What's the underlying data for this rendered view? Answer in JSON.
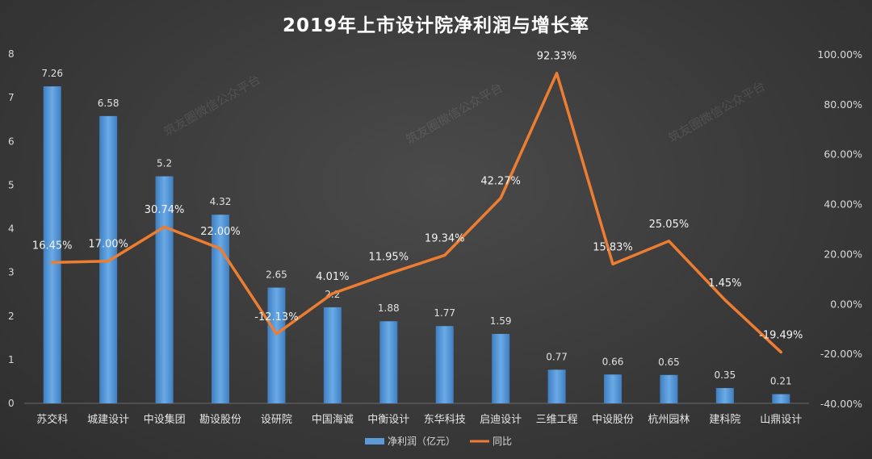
{
  "chart_data": {
    "type": "bar",
    "title": "2019年上市设计院净利润与增长率",
    "categories": [
      "苏交科",
      "城建设计",
      "中设集团",
      "勘设股份",
      "设研院",
      "中国海诚",
      "中衡设计",
      "东华科技",
      "启迪设计",
      "三维工程",
      "中设股份",
      "杭州园林",
      "建科院",
      "山鼎设计"
    ],
    "series": [
      {
        "name": "净利润（亿元）",
        "type": "bar",
        "axis": "left",
        "values": [
          7.26,
          6.58,
          5.2,
          4.32,
          2.65,
          2.2,
          1.88,
          1.77,
          1.59,
          0.77,
          0.66,
          0.65,
          0.35,
          0.21
        ],
        "labels": [
          "7.26",
          "6.58",
          "5.2",
          "4.32",
          "2.65",
          "2.2",
          "1.88",
          "1.77",
          "1.59",
          "0.77",
          "0.66",
          "0.65",
          "0.35",
          "0.21"
        ],
        "color": "#5b9bd5"
      },
      {
        "name": "同比",
        "type": "line",
        "axis": "right",
        "values": [
          16.45,
          17.0,
          30.74,
          22.0,
          -12.13,
          4.01,
          11.95,
          19.34,
          42.27,
          92.33,
          15.83,
          25.05,
          1.45,
          -19.49
        ],
        "labels": [
          "16.45%",
          "17.00%",
          "30.74%",
          "22.00%",
          "-12.13%",
          "4.01%",
          "11.95%",
          "19.34%",
          "42.27%",
          "92.33%",
          "15.83%",
          "25.05%",
          "1.45%",
          "-19.49%"
        ],
        "color": "#ed7d31"
      }
    ],
    "y_left": {
      "min": 0,
      "max": 8,
      "ticks": [
        "0",
        "1",
        "2",
        "3",
        "4",
        "5",
        "6",
        "7",
        "8"
      ]
    },
    "y_right": {
      "min": -40,
      "max": 100,
      "ticks": [
        "-40.00%",
        "-20.00%",
        "0.00%",
        "20.00%",
        "40.00%",
        "60.00%",
        "80.00%",
        "100.00%"
      ]
    },
    "grid": false,
    "legend_position": "bottom"
  },
  "watermark_text": "筑友圈微信公众平台"
}
